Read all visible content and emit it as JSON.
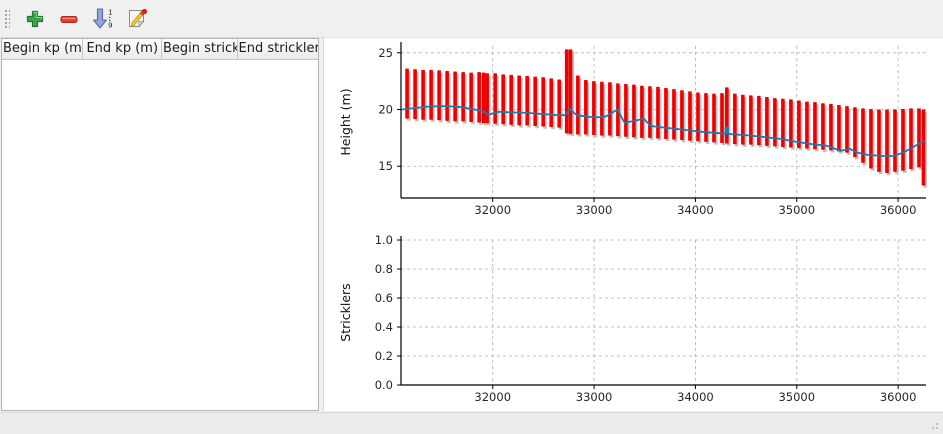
{
  "toolbar": {
    "buttons": [
      {
        "id": "add-row",
        "icon": "plus-icon"
      },
      {
        "id": "remove-row",
        "icon": "minus-icon"
      },
      {
        "id": "sort-rows",
        "icon": "sort-numeric-down-icon",
        "digit_top": "1",
        "digit_bottom": "9"
      },
      {
        "id": "edit-rows",
        "icon": "edit-note-icon"
      }
    ]
  },
  "table": {
    "columns": [
      "Begin kp (m)",
      "End kp (m)",
      "Begin strickler",
      "End strickler"
    ],
    "rows": []
  },
  "colors": {
    "bar": "#ee0000",
    "bar_shadow": "#c0c0c0",
    "line": "#1f77b4",
    "grid": "#b0b0b0",
    "axis": "#000000",
    "tick_text": "#262626"
  },
  "chart_data": [
    {
      "type": "ranges+line",
      "title": "",
      "xlabel": "",
      "ylabel": "Height (m)",
      "xlim": [
        31095,
        36275
      ],
      "ylim": [
        12.2,
        25.6
      ],
      "xticks": [
        32000,
        33000,
        34000,
        35000,
        36000
      ],
      "xtick_labels": [
        "32000",
        "33000",
        "34000",
        "35000",
        "36000"
      ],
      "yticks": [
        15,
        20,
        25
      ],
      "ytick_labels": [
        "15",
        "20",
        "25"
      ],
      "grid": true,
      "legend": null,
      "bars": [
        [
          31155,
          19.2,
          23.6
        ],
        [
          31234,
          19.15,
          23.55
        ],
        [
          31313,
          19.1,
          23.5
        ],
        [
          31392,
          19.1,
          23.5
        ],
        [
          31471,
          19.05,
          23.45
        ],
        [
          31550,
          19.0,
          23.4
        ],
        [
          31629,
          18.95,
          23.35
        ],
        [
          31708,
          18.95,
          23.3
        ],
        [
          31787,
          18.9,
          23.25
        ],
        [
          31866,
          18.85,
          23.3
        ],
        [
          31910,
          18.8,
          23.25
        ],
        [
          31945,
          18.8,
          23.2
        ],
        [
          32024,
          18.75,
          23.2
        ],
        [
          32103,
          18.7,
          23.1
        ],
        [
          32182,
          18.65,
          23.05
        ],
        [
          32261,
          18.6,
          23.0
        ],
        [
          32340,
          18.6,
          22.95
        ],
        [
          32419,
          18.55,
          22.9
        ],
        [
          32498,
          18.5,
          22.85
        ],
        [
          32577,
          18.45,
          22.75
        ],
        [
          32656,
          18.4,
          22.65
        ],
        [
          32730,
          17.9,
          25.3
        ],
        [
          32768,
          17.85,
          25.3
        ],
        [
          32840,
          17.8,
          23.0
        ],
        [
          32919,
          17.8,
          22.6
        ],
        [
          32998,
          17.75,
          22.5
        ],
        [
          33077,
          17.7,
          22.45
        ],
        [
          33156,
          17.7,
          22.4
        ],
        [
          33235,
          17.65,
          22.3
        ],
        [
          33314,
          17.6,
          22.25
        ],
        [
          33393,
          17.55,
          22.2
        ],
        [
          33472,
          17.5,
          22.1
        ],
        [
          33551,
          17.5,
          22.05
        ],
        [
          33630,
          17.45,
          22.0
        ],
        [
          33709,
          17.4,
          21.9
        ],
        [
          33788,
          17.35,
          21.8
        ],
        [
          33867,
          17.3,
          21.7
        ],
        [
          33946,
          17.25,
          21.6
        ],
        [
          34025,
          17.2,
          21.5
        ],
        [
          34104,
          17.15,
          21.45
        ],
        [
          34183,
          17.1,
          21.4
        ],
        [
          34262,
          17.05,
          21.45
        ],
        [
          34310,
          17.0,
          21.95
        ],
        [
          34389,
          16.95,
          21.4
        ],
        [
          34468,
          16.9,
          21.3
        ],
        [
          34547,
          16.9,
          21.25
        ],
        [
          34626,
          16.85,
          21.2
        ],
        [
          34705,
          16.8,
          21.1
        ],
        [
          34784,
          16.75,
          21.0
        ],
        [
          34863,
          16.7,
          20.95
        ],
        [
          34942,
          16.65,
          20.9
        ],
        [
          35021,
          16.6,
          20.8
        ],
        [
          35100,
          16.55,
          20.7
        ],
        [
          35179,
          16.5,
          20.65
        ],
        [
          35258,
          16.45,
          20.55
        ],
        [
          35337,
          16.4,
          20.5
        ],
        [
          35416,
          16.3,
          20.4
        ],
        [
          35495,
          16.2,
          20.3
        ],
        [
          35574,
          15.8,
          20.2
        ],
        [
          35653,
          15.3,
          20.1
        ],
        [
          35732,
          14.8,
          20.05
        ],
        [
          35811,
          14.5,
          20.0
        ],
        [
          35890,
          14.4,
          20.0
        ],
        [
          35969,
          14.5,
          20.0
        ],
        [
          36048,
          14.6,
          20.05
        ],
        [
          36127,
          14.75,
          20.1
        ],
        [
          36206,
          14.9,
          20.1
        ],
        [
          36250,
          13.3,
          20.0
        ]
      ],
      "line": [
        [
          31110,
          20.0
        ],
        [
          31200,
          20.1
        ],
        [
          31350,
          20.25
        ],
        [
          31500,
          20.3
        ],
        [
          31650,
          20.25
        ],
        [
          31800,
          20.05
        ],
        [
          31900,
          19.85
        ],
        [
          31960,
          19.55
        ],
        [
          32060,
          19.8
        ],
        [
          32200,
          19.75
        ],
        [
          32350,
          19.7
        ],
        [
          32500,
          19.6
        ],
        [
          32650,
          19.5
        ],
        [
          32715,
          19.5
        ],
        [
          32760,
          20.05
        ],
        [
          32830,
          19.5
        ],
        [
          32910,
          19.4
        ],
        [
          33010,
          19.3
        ],
        [
          33120,
          19.4
        ],
        [
          33230,
          20.0
        ],
        [
          33300,
          18.85
        ],
        [
          33400,
          19.0
        ],
        [
          33490,
          19.2
        ],
        [
          33560,
          18.55
        ],
        [
          33650,
          18.45
        ],
        [
          33800,
          18.3
        ],
        [
          33950,
          18.15
        ],
        [
          34100,
          18.0
        ],
        [
          34250,
          17.9
        ],
        [
          34400,
          17.8
        ],
        [
          34550,
          17.7
        ],
        [
          34700,
          17.55
        ],
        [
          34850,
          17.4
        ],
        [
          35000,
          17.15
        ],
        [
          35150,
          16.95
        ],
        [
          35300,
          16.8
        ],
        [
          35430,
          16.35
        ],
        [
          35520,
          16.55
        ],
        [
          35600,
          16.2
        ],
        [
          35700,
          16.0
        ],
        [
          35850,
          15.9
        ],
        [
          35950,
          15.9
        ],
        [
          36050,
          16.2
        ],
        [
          36150,
          16.7
        ],
        [
          36250,
          17.2
        ]
      ],
      "marker": {
        "x": 34310,
        "y0": 17.9,
        "y1": 18.5
      }
    },
    {
      "type": "empty",
      "title": "",
      "xlabel": "",
      "ylabel": "Stricklers",
      "xlim": [
        31095,
        36275
      ],
      "ylim": [
        0,
        1
      ],
      "xticks": [
        32000,
        33000,
        34000,
        35000,
        36000
      ],
      "xtick_labels": [
        "32000",
        "33000",
        "34000",
        "35000",
        "36000"
      ],
      "yticks": [
        0,
        0.2,
        0.4,
        0.6,
        0.8,
        1.0
      ],
      "ytick_labels": [
        "0.0",
        "0.2",
        "0.4",
        "0.6",
        "0.8",
        "1.0"
      ],
      "grid": true,
      "legend": null,
      "bars": [],
      "line": []
    }
  ],
  "status_bar": {
    "text": ""
  }
}
